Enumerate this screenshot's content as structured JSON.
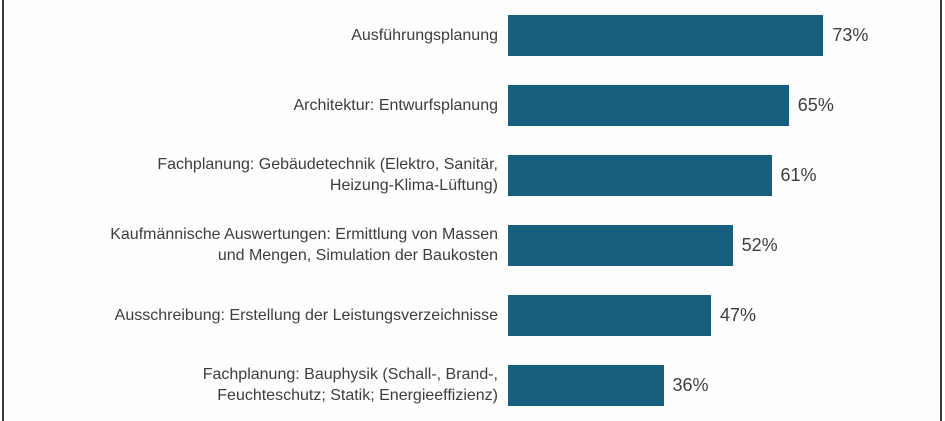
{
  "frame": {
    "border_color": "#3b3b3b",
    "background": "#fefefe"
  },
  "chart_data": {
    "type": "bar",
    "orientation": "horizontal",
    "title": "",
    "xlabel": "",
    "ylabel": "",
    "xlim": [
      0,
      100
    ],
    "grid": false,
    "legend": false,
    "bar_color": "#175f7f",
    "text_color": "#3d3d3d",
    "categories": [
      "Ausführungsplanung",
      "Architektur: Entwurfsplanung",
      "Fachplanung: Gebäudetechnik (Elektro, Sanitär, Heizung-Klima-Lüftung)",
      "Kaufmännische Auswertungen: Ermittlung von Massen und Mengen, Simulation der Baukosten",
      "Ausschreibung: Erstellung der Leistungsverzeichnisse",
      "Fachplanung: Bauphysik (Schall-, Brand-, Feuchteschutz; Statik; Energieeffizienz)"
    ],
    "labels_display": [
      "Ausführungsplanung",
      "Architektur: Entwurfsplanung",
      "Fachplanung: Gebäudetechnik (Elektro, Sanitär,\nHeizung-Klima-Lüftung)",
      "Kaufmännische Auswertungen: Ermittlung von Massen\nund Mengen, Simulation der Baukosten",
      "Ausschreibung: Erstellung der Leistungsverzeichnisse",
      "Fachplanung: Bauphysik (Schall-, Brand-,\nFeuchteschutz; Statik; Energieeffizienz)"
    ],
    "values": [
      73,
      65,
      61,
      52,
      47,
      36
    ],
    "value_labels": [
      "73%",
      "65%",
      "61%",
      "52%",
      "47%",
      "36%"
    ]
  }
}
